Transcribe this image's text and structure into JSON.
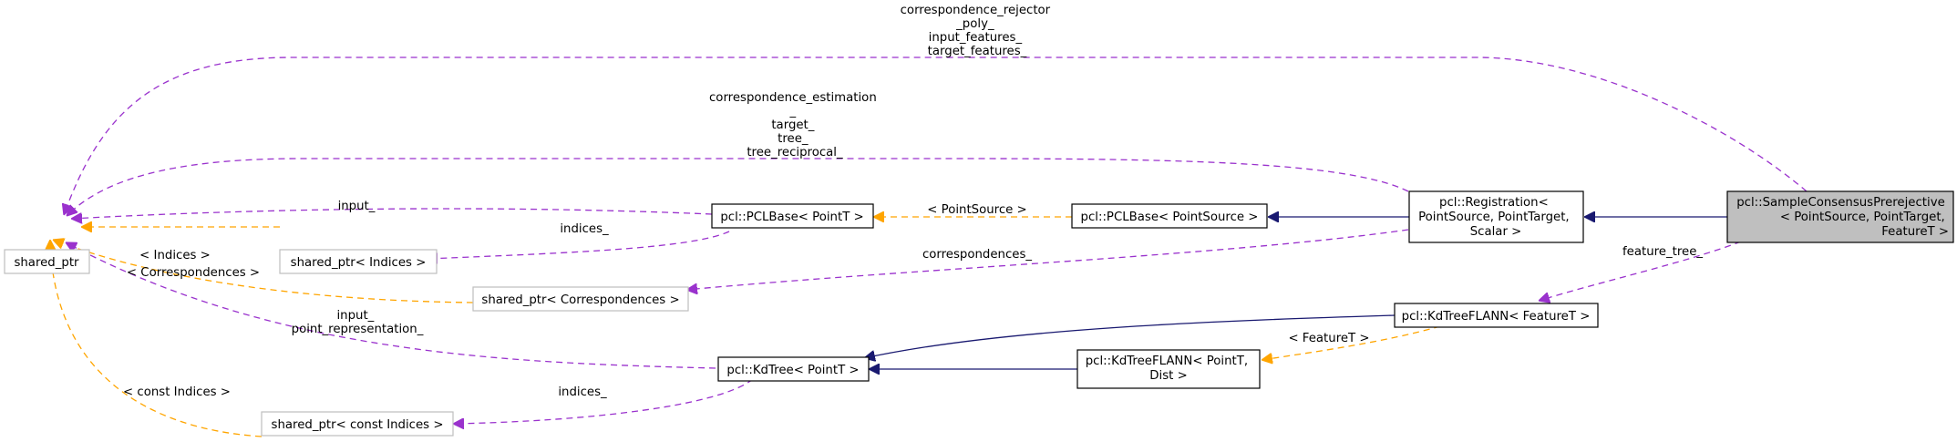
{
  "colors": {
    "inheritance": "#191970",
    "usage": "#9a32cd",
    "template": "#ffa500",
    "node_border": "#000000",
    "node_border_external": "#bfbfbf",
    "focus_fill": "#bfbfbf"
  },
  "nodes": {
    "shared_ptr": "shared_ptr",
    "shared_ptr_indices": "shared_ptr< Indices >",
    "shared_ptr_correspondences": "shared_ptr< Correspondences >",
    "shared_ptr_const_indices": "shared_ptr< const Indices >",
    "pclbase_pointt": "pcl::PCLBase< PointT >",
    "pclbase_pointsource": "pcl::PCLBase< PointSource >",
    "kdtree_pointt": "pcl::KdTree< PointT >",
    "kdtreeflann_pointt_dist": [
      "pcl::KdTreeFLANN< PointT,",
      "Dist >"
    ],
    "kdtreeflann_featuret": "pcl::KdTreeFLANN< FeatureT >",
    "registration": [
      "pcl::Registration<",
      "PointSource, PointTarget,",
      "Scalar >"
    ],
    "sample_consensus": [
      "pcl::SampleConsensusPrerejective",
      "< PointSource, PointTarget,",
      "FeatureT >"
    ]
  },
  "edge_labels": {
    "rejector": [
      "correspondence_rejector",
      "_poly_",
      "input_features_",
      "target_features_"
    ],
    "estimation": [
      "correspondence_estimation",
      "_",
      "target_",
      "tree_",
      "tree_reciprocal_"
    ],
    "input": "input_",
    "indices_pclbase": "indices_",
    "indices_tpl": "< Indices >",
    "correspondences_tpl": "< Correspondences >",
    "correspondences": "correspondences_",
    "kdtree_input": [
      "input_",
      "point_representation_"
    ],
    "const_indices_tpl": "< const Indices >",
    "indices_kdtree": "indices_",
    "pointsource_tpl": "< PointSource >",
    "featuret_tpl": "< FeatureT >",
    "feature_tree": "feature_tree_"
  }
}
